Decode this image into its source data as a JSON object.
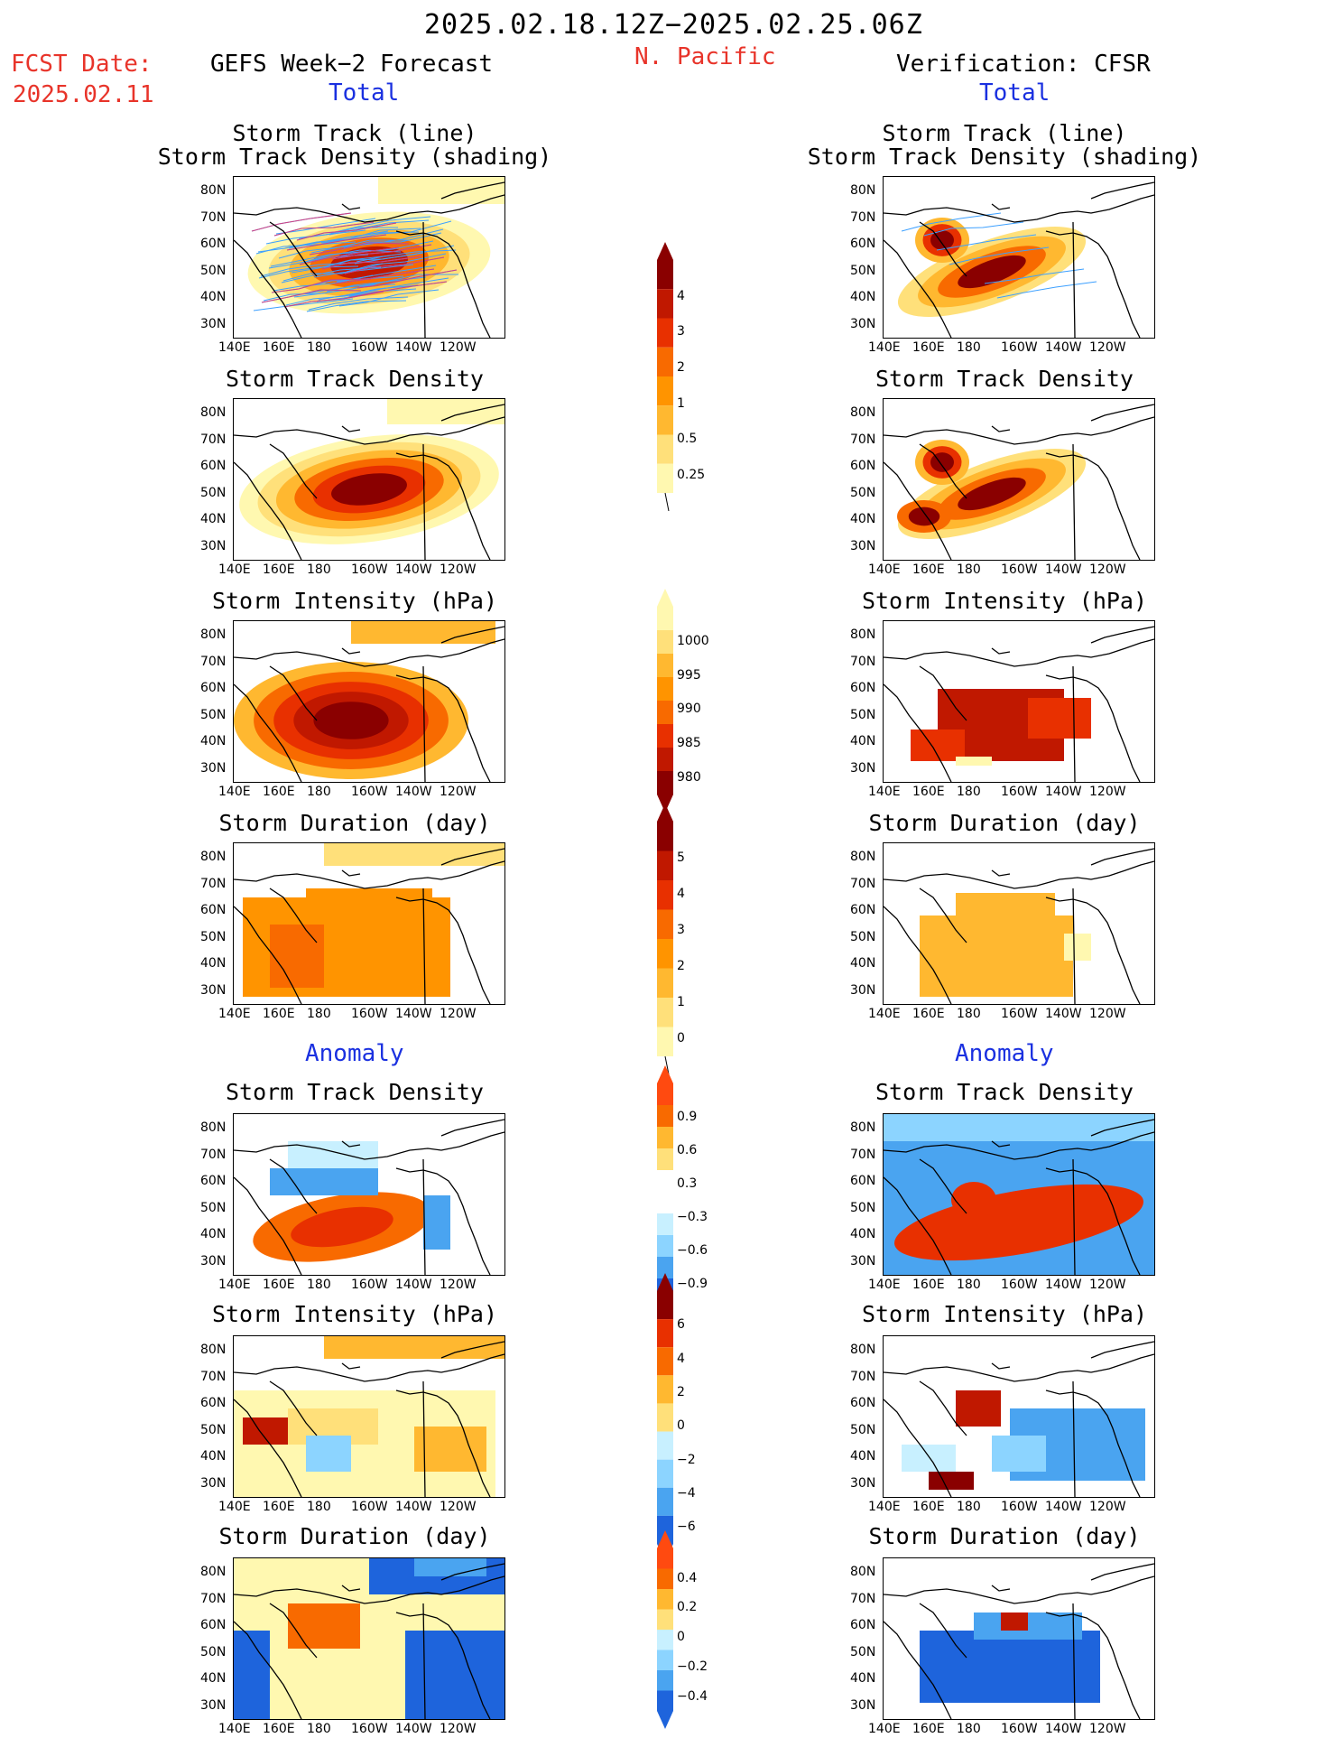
{
  "header": {
    "period": "2025.02.18.12Z−2025.02.25.06Z",
    "region": "N. Pacific",
    "fcst_label": "FCST Date:",
    "fcst_date": "2025.02.11",
    "left_title": "GEFS Week−2 Forecast",
    "right_title": "Verification: CFSR",
    "total_label_left": "Total",
    "total_label_right": "Total",
    "anomaly_label_left": "Anomaly",
    "anomaly_label_right": "Anomaly"
  },
  "panel_titles": {
    "track_line": "Storm Track (line)",
    "track_shading": "Storm Track Density (shading)",
    "density": "Storm Track Density",
    "intensity": "Storm Intensity (hPa)",
    "duration": "Storm Duration (day)"
  },
  "axes": {
    "lat_labels": [
      "80N",
      "70N",
      "60N",
      "50N",
      "40N",
      "30N"
    ],
    "lon_labels": [
      "140E",
      "160E",
      "180",
      "160W",
      "140W",
      "120W"
    ]
  },
  "colorbars": {
    "density_total": [
      "4",
      "3",
      "2",
      "1",
      "0.5",
      "0.25"
    ],
    "intensity_total": [
      "1000",
      "995",
      "990",
      "985",
      "980"
    ],
    "duration_total": [
      "5",
      "4",
      "3",
      "2",
      "1",
      "0"
    ],
    "density_anom": [
      "0.9",
      "0.6",
      "0.3",
      "−0.3",
      "−0.6",
      "−0.9"
    ],
    "intensity_anom": [
      "6",
      "4",
      "2",
      "0",
      "−2",
      "−4",
      "−6"
    ],
    "duration_anom": [
      "0.4",
      "0.2",
      "0",
      "−0.2",
      "−0.4"
    ]
  },
  "palette": {
    "warm": [
      "#fff8b0",
      "#ffe07a",
      "#ffb830",
      "#ff9400",
      "#f86a00",
      "#e83000",
      "#c01800",
      "#8a0000"
    ],
    "cool": [
      "#c8f0ff",
      "#8cd4ff",
      "#4aa4f0",
      "#1e64dc"
    ]
  }
}
